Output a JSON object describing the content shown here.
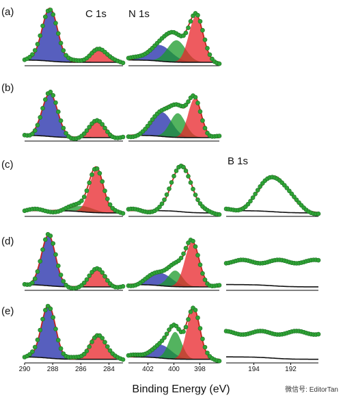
{
  "chart_data": {
    "type": "line",
    "xlabel": "Binding Energy (eV)",
    "watermark": "微信号: EditorTan",
    "panels": [
      "(a)",
      "(b)",
      "(c)",
      "(d)",
      "(e)"
    ],
    "columns": [
      {
        "title": "C 1s",
        "xlim": [
          290,
          283
        ],
        "ticks": [
          290,
          288,
          286,
          284
        ],
        "tick_labels": [
          "290",
          "288",
          "286",
          "284"
        ],
        "components": {
          "(a)": [
            {
              "color": "#1f2aa8",
              "center": 288.2,
              "height": 0.92,
              "width": 0.55
            },
            {
              "color": "#e8242a",
              "center": 284.8,
              "height": 0.25,
              "width": 0.55
            }
          ],
          "(b)": [
            {
              "color": "#1f2aa8",
              "center": 288.2,
              "height": 0.75,
              "width": 0.55
            },
            {
              "color": "#e8242a",
              "center": 284.8,
              "height": 0.28,
              "width": 0.55
            }
          ],
          "(c)": [
            {
              "color": "#1a9a2a",
              "center": 285.9,
              "height": 0.1,
              "width": 0.8
            },
            {
              "color": "#e8242a",
              "center": 284.9,
              "height": 0.75,
              "width": 0.5
            }
          ],
          "(d)": [
            {
              "color": "#1f2aa8",
              "center": 288.3,
              "height": 0.88,
              "width": 0.5
            },
            {
              "color": "#e8242a",
              "center": 284.8,
              "height": 0.3,
              "width": 0.55
            }
          ],
          "(e)": [
            {
              "color": "#1f2aa8",
              "center": 288.3,
              "height": 0.88,
              "width": 0.5
            },
            {
              "color": "#e8242a",
              "center": 284.8,
              "height": 0.42,
              "width": 0.55
            }
          ]
        }
      },
      {
        "title": "N 1s",
        "xlim": [
          403.5,
          396.5
        ],
        "ticks": [
          402,
          400,
          398
        ],
        "tick_labels": [
          "402",
          "400",
          "398"
        ],
        "components": {
          "(a)": [
            {
              "color": "#1f2aa8",
              "center": 401.1,
              "height": 0.28,
              "width": 0.9
            },
            {
              "color": "#1a9a2a",
              "center": 399.8,
              "height": 0.38,
              "width": 0.7
            },
            {
              "color": "#e8242a",
              "center": 398.3,
              "height": 0.8,
              "width": 0.55
            }
          ],
          "(b)": [
            {
              "color": "#1f2aa8",
              "center": 400.9,
              "height": 0.42,
              "width": 0.75
            },
            {
              "color": "#1a9a2a",
              "center": 399.7,
              "height": 0.42,
              "width": 0.6
            },
            {
              "color": "#e8242a",
              "center": 398.4,
              "height": 0.68,
              "width": 0.5
            }
          ],
          "(c)": [
            {
              "color": "#ffffff",
              "center": 399.4,
              "height": 0.82,
              "width": 0.75
            }
          ],
          "(d)": [
            {
              "color": "#1f2aa8",
              "center": 401.0,
              "height": 0.22,
              "width": 0.85
            },
            {
              "color": "#1a9a2a",
              "center": 399.9,
              "height": 0.28,
              "width": 0.55
            },
            {
              "color": "#e8242a",
              "center": 398.6,
              "height": 0.78,
              "width": 0.55
            }
          ],
          "(e)": [
            {
              "color": "#1f2aa8",
              "center": 401.0,
              "height": 0.22,
              "width": 0.8
            },
            {
              "color": "#1a9a2a",
              "center": 399.9,
              "height": 0.45,
              "width": 0.5
            },
            {
              "color": "#e8242a",
              "center": 398.5,
              "height": 0.85,
              "width": 0.5
            }
          ]
        }
      },
      {
        "title": "B 1s",
        "xlim": [
          195.5,
          190.5
        ],
        "ticks": [
          194,
          192
        ],
        "tick_labels": [
          "194",
          "192"
        ],
        "panels_present": [
          "(c)",
          "(d)",
          "(e)"
        ],
        "components": {
          "(c)": [
            {
              "color": "#ffffff",
              "center": 192.9,
              "height": 0.62,
              "width": 0.8
            }
          ],
          "(d)": [],
          "(e)": []
        }
      }
    ]
  }
}
